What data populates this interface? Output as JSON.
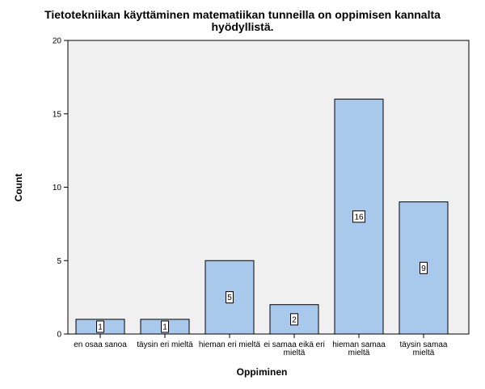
{
  "chart_data": {
    "type": "bar",
    "title_lines": [
      "Tietotekniikan käyttäminen matematiikan tunneilla on oppimisen kannalta",
      "hyödyllistä."
    ],
    "xlabel": "Oppiminen",
    "ylabel": "Count",
    "categories": [
      [
        "en osaa sanoa"
      ],
      [
        "täysin eri mieltä"
      ],
      [
        "hieman eri mieltä"
      ],
      [
        "ei samaa eikä eri",
        "mieltä"
      ],
      [
        "hieman samaa",
        "mieltä"
      ],
      [
        "täysin samaa",
        "mieltä"
      ]
    ],
    "values": [
      1,
      1,
      5,
      2,
      16,
      9
    ],
    "ylim": [
      0,
      20
    ],
    "yticks": [
      0,
      5,
      10,
      15,
      20
    ],
    "grid": false,
    "colors": {
      "bar_fill": "#a9c9ec",
      "bar_stroke": "#000000",
      "plot_bg": "#f0f0f0"
    }
  }
}
